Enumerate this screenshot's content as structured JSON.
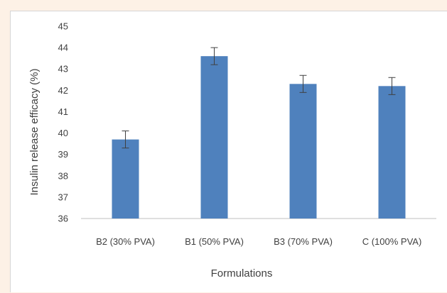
{
  "chart_data": {
    "type": "bar",
    "title": "",
    "xlabel": "Formulations",
    "ylabel": "Insulin release efficacy (%)",
    "categories": [
      "B2 (30% PVA)",
      "B1 (50% PVA)",
      "B3 (70% PVA)",
      "C (100% PVA)"
    ],
    "values": [
      39.7,
      43.6,
      42.3,
      42.2
    ],
    "error": [
      0.4,
      0.4,
      0.4,
      0.4
    ],
    "ylim": [
      36,
      45
    ],
    "yticks": [
      36,
      37,
      38,
      39,
      40,
      41,
      42,
      43,
      44,
      45
    ],
    "grid": false,
    "legend": "none",
    "colors": {
      "bar": "#4f81bd",
      "axis": "#bfbfbf",
      "text": "#404040",
      "error_bar": "#404040"
    }
  }
}
